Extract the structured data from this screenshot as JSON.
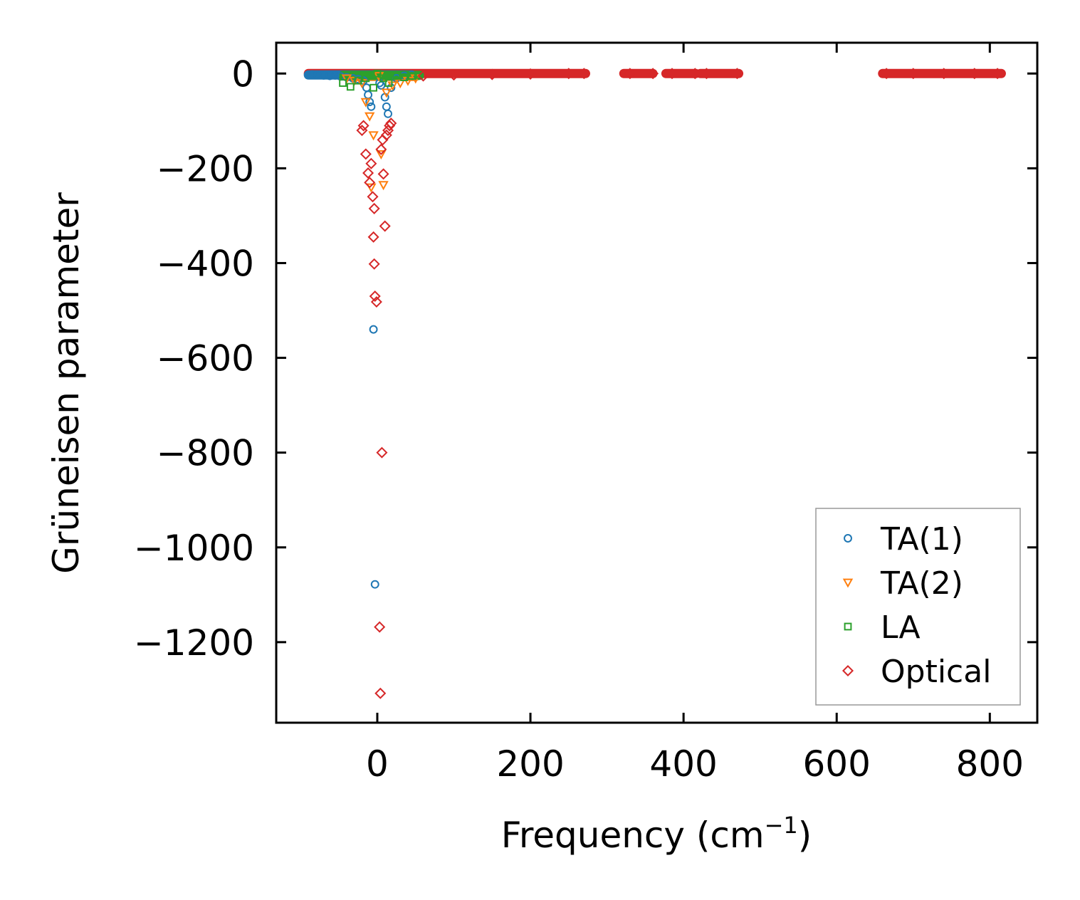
{
  "chart_data": {
    "type": "scatter",
    "title": "",
    "xlabel": "Frequency (cm",
    "xlabel_sup": "−1",
    "xlabel_close": ")",
    "ylabel": "Grüneisen parameter",
    "xlim": [
      -132,
      862
    ],
    "ylim": [
      -1370,
      65
    ],
    "xticks": [
      0,
      200,
      400,
      600,
      800
    ],
    "xtick_labels": [
      "0",
      "200",
      "400",
      "600",
      "800"
    ],
    "yticks": [
      0,
      -200,
      -400,
      -600,
      -800,
      -1000,
      -1200
    ],
    "ytick_labels": [
      "0",
      "−200",
      "−400",
      "−600",
      "−800",
      "−1000",
      "−1200"
    ],
    "legend_position": "lower right",
    "series": [
      {
        "name": "TA(1)",
        "marker": "circle",
        "color": "#1f77b4",
        "points": [
          [
            -85,
            -2
          ],
          [
            -78,
            -3
          ],
          [
            -70,
            -4
          ],
          [
            -62,
            -5
          ],
          [
            -55,
            -4
          ],
          [
            -48,
            -6
          ],
          [
            -40,
            -8
          ],
          [
            -32,
            -10
          ],
          [
            -25,
            -12
          ],
          [
            -18,
            -15
          ],
          [
            -14,
            -30
          ],
          [
            -12,
            -45
          ],
          [
            -10,
            -60
          ],
          [
            -8,
            -70
          ],
          [
            -5,
            -540
          ],
          [
            -3,
            -1078
          ],
          [
            3,
            -20
          ],
          [
            5,
            -25
          ],
          [
            10,
            -50
          ],
          [
            12,
            -70
          ],
          [
            14,
            -85
          ],
          [
            18,
            -30
          ],
          [
            25,
            -10
          ],
          [
            35,
            -5
          ],
          [
            45,
            -3
          ]
        ]
      },
      {
        "name": "TA(2)",
        "marker": "triangle-down",
        "color": "#ff7f0e",
        "points": [
          [
            -40,
            -10
          ],
          [
            -30,
            -15
          ],
          [
            -20,
            -20
          ],
          [
            -15,
            -60
          ],
          [
            -10,
            -90
          ],
          [
            -8,
            -240
          ],
          [
            -5,
            -130
          ],
          [
            2,
            -5
          ],
          [
            5,
            -170
          ],
          [
            8,
            -235
          ],
          [
            12,
            -40
          ],
          [
            20,
            -25
          ],
          [
            30,
            -20
          ],
          [
            40,
            -15
          ],
          [
            50,
            -10
          ]
        ]
      },
      {
        "name": "LA",
        "marker": "square",
        "color": "#2ca02c",
        "points": [
          [
            -45,
            -20
          ],
          [
            -35,
            -28
          ],
          [
            -25,
            -15
          ],
          [
            -15,
            -10
          ],
          [
            -5,
            -30
          ],
          [
            0,
            0
          ],
          [
            8,
            -10
          ],
          [
            15,
            -20
          ],
          [
            25,
            -5
          ],
          [
            35,
            -8
          ],
          [
            45,
            -5
          ],
          [
            55,
            -3
          ]
        ]
      },
      {
        "name": "Optical",
        "marker": "diamond",
        "color": "#d62728",
        "points": [
          [
            -20,
            -120
          ],
          [
            -18,
            -110
          ],
          [
            -15,
            -170
          ],
          [
            -12,
            -210
          ],
          [
            -10,
            -230
          ],
          [
            -8,
            -190
          ],
          [
            -6,
            -260
          ],
          [
            -4,
            -285
          ],
          [
            -5,
            -345
          ],
          [
            -4,
            -402
          ],
          [
            -3,
            -470
          ],
          [
            -1,
            -482
          ],
          [
            3,
            -1168
          ],
          [
            4,
            -1308
          ],
          [
            6,
            -800
          ],
          [
            10,
            -322
          ],
          [
            8,
            -212
          ],
          [
            5,
            -160
          ],
          [
            7,
            -140
          ],
          [
            12,
            -130
          ],
          [
            14,
            -120
          ],
          [
            16,
            -110
          ],
          [
            18,
            -105
          ],
          [
            60,
            -5
          ],
          [
            100,
            -3
          ],
          [
            150,
            -2
          ],
          [
            200,
            -1
          ],
          [
            250,
            0
          ],
          [
            270,
            0
          ],
          [
            330,
            0
          ],
          [
            360,
            0
          ],
          [
            385,
            0
          ],
          [
            415,
            0
          ],
          [
            430,
            0
          ],
          [
            470,
            0
          ],
          [
            665,
            0
          ],
          [
            700,
            0
          ],
          [
            740,
            0
          ],
          [
            780,
            0
          ],
          [
            810,
            0
          ]
        ]
      }
    ],
    "dense_bands": [
      {
        "series": "Optical",
        "from": -90,
        "to": 272,
        "y": 0
      },
      {
        "series": "Optical",
        "from": 322,
        "to": 360,
        "y": 0
      },
      {
        "series": "Optical",
        "from": 377,
        "to": 416,
        "y": 0
      },
      {
        "series": "Optical",
        "from": 422,
        "to": 472,
        "y": 0
      },
      {
        "series": "Optical",
        "from": 660,
        "to": 815,
        "y": 0
      },
      {
        "series": "TA(1)",
        "from": -90,
        "to": 45,
        "y": -3
      },
      {
        "series": "TA(2)",
        "from": -40,
        "to": 50,
        "y": -6
      },
      {
        "series": "LA",
        "from": -45,
        "to": 55,
        "y": -4
      }
    ]
  }
}
